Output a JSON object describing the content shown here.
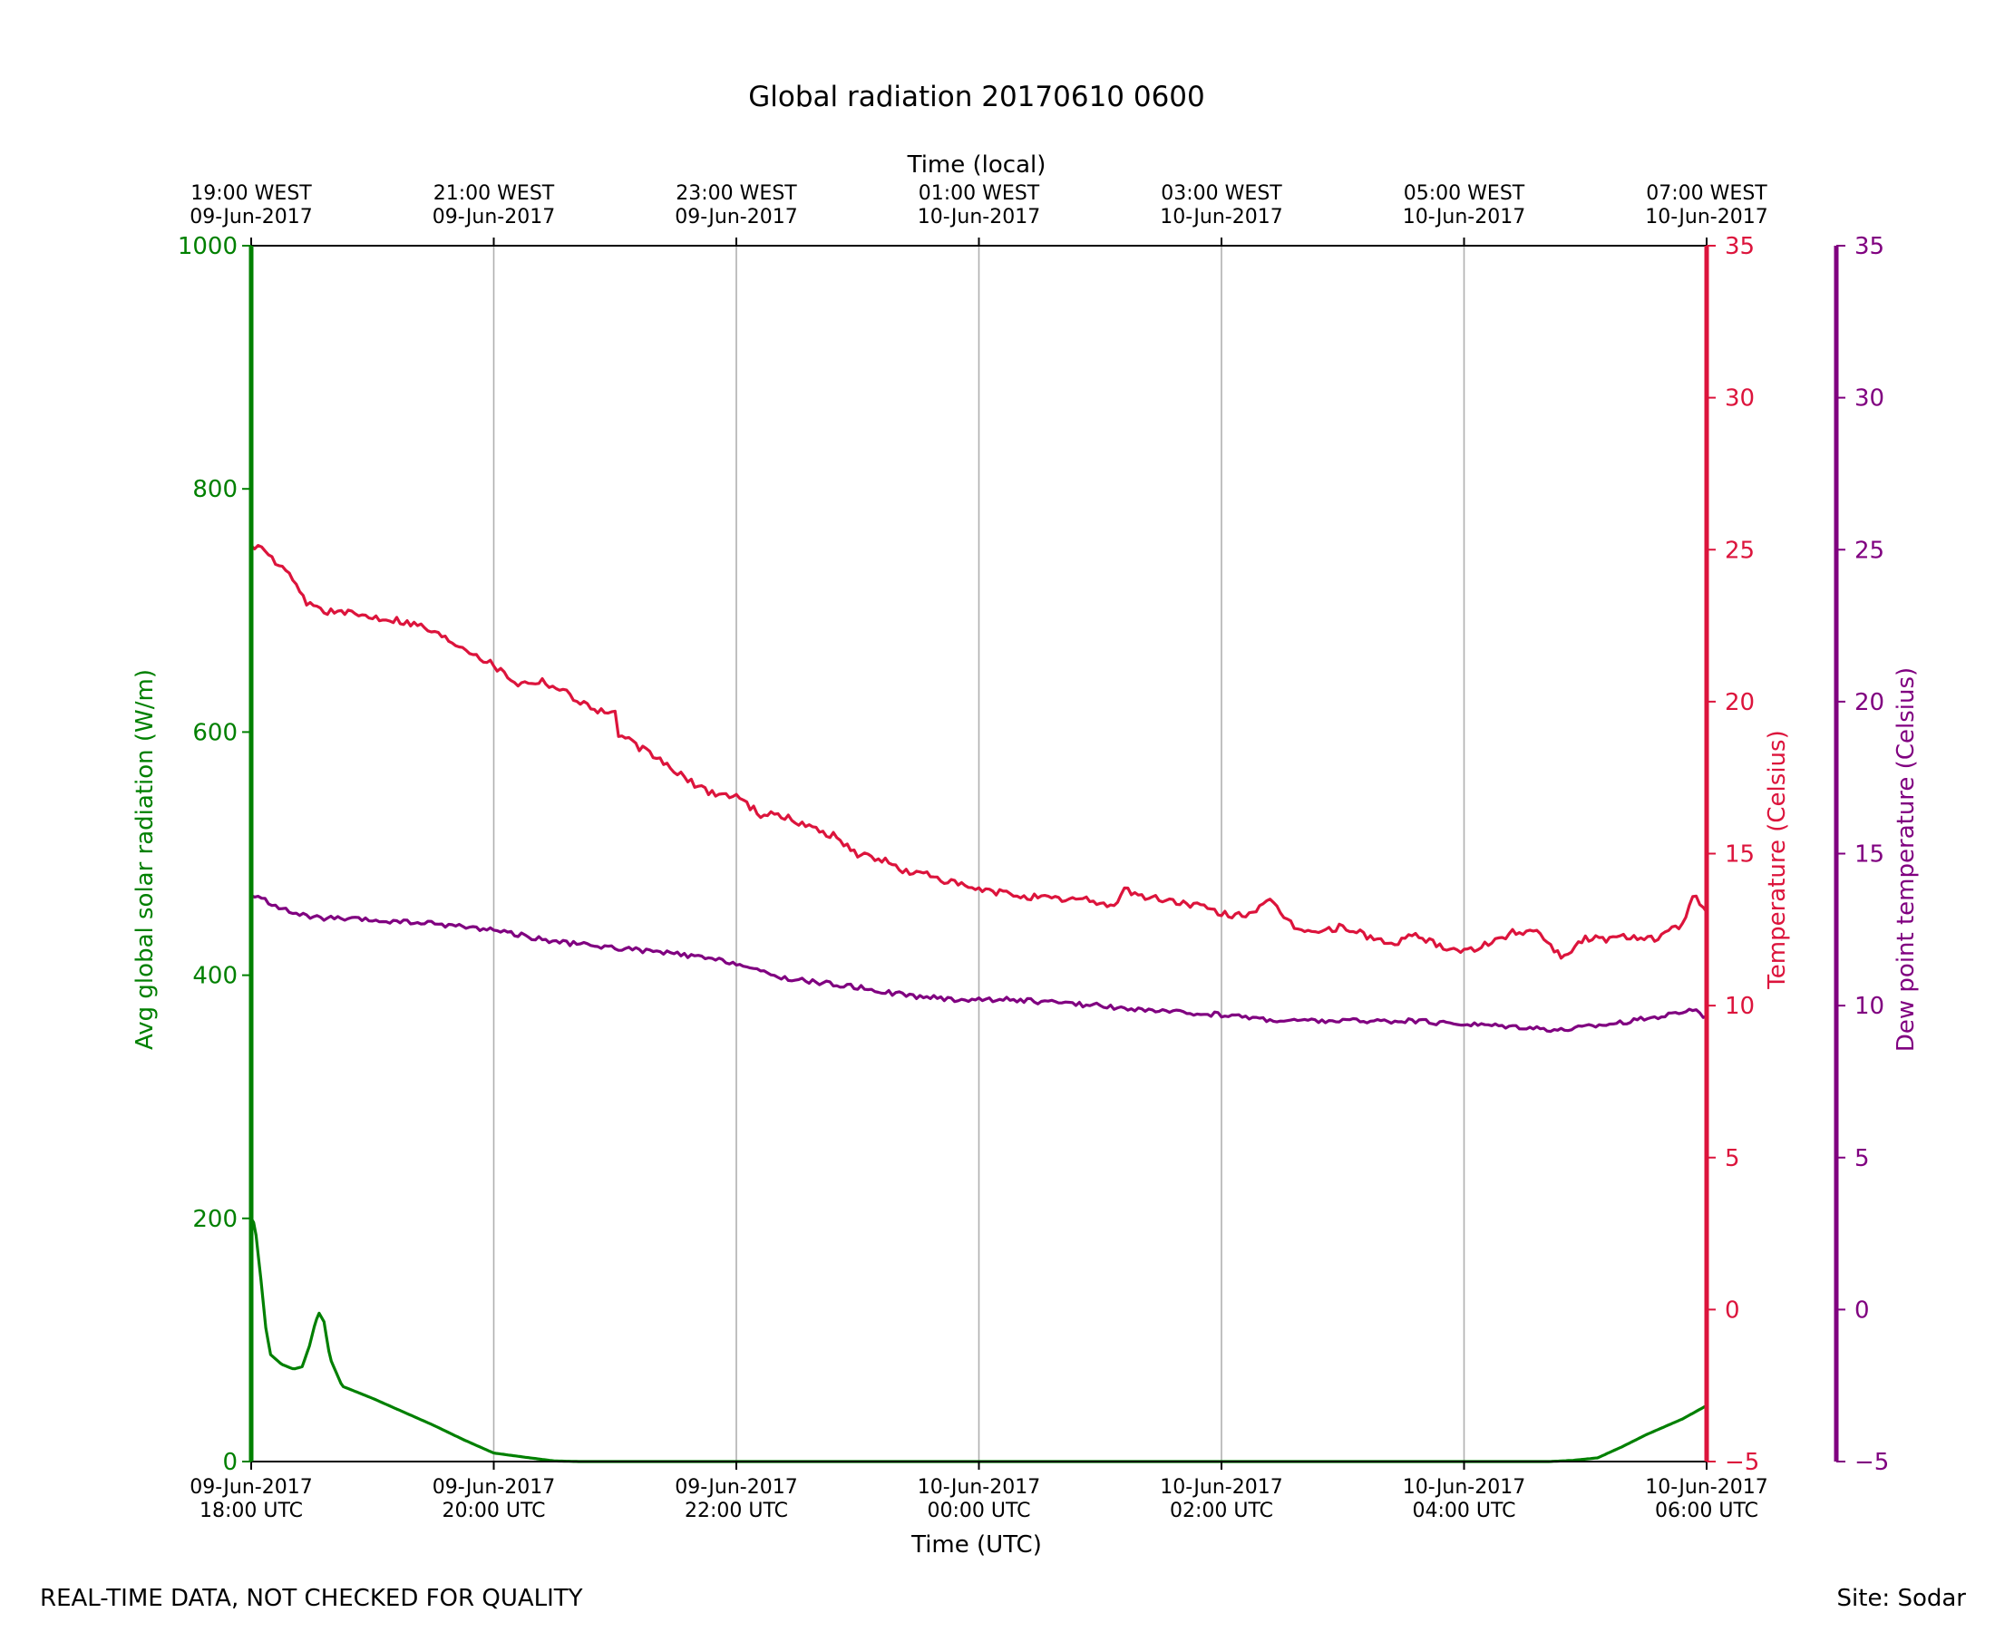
{
  "chart_data": {
    "type": "line",
    "title": "Global radiation 20170610 0600",
    "xlabel": "Time (UTC)",
    "x2label": "Time (local)",
    "footer_left": "REAL-TIME DATA, NOT CHECKED FOR QUALITY",
    "footer_right": "Site: Sodar",
    "grid": "vertical",
    "x_range_hours": [
      0,
      12
    ],
    "x_ticks_utc": [
      {
        "h": 0,
        "line1": "09-Jun-2017",
        "line2": "18:00 UTC"
      },
      {
        "h": 2,
        "line1": "09-Jun-2017",
        "line2": "20:00 UTC"
      },
      {
        "h": 4,
        "line1": "09-Jun-2017",
        "line2": "22:00 UTC"
      },
      {
        "h": 6,
        "line1": "10-Jun-2017",
        "line2": "00:00 UTC"
      },
      {
        "h": 8,
        "line1": "10-Jun-2017",
        "line2": "02:00 UTC"
      },
      {
        "h": 10,
        "line1": "10-Jun-2017",
        "line2": "04:00 UTC"
      },
      {
        "h": 12,
        "line1": "10-Jun-2017",
        "line2": "06:00 UTC"
      }
    ],
    "x_ticks_local": [
      {
        "h": 0,
        "line1": "19:00 WEST",
        "line2": "09-Jun-2017"
      },
      {
        "h": 2,
        "line1": "21:00 WEST",
        "line2": "09-Jun-2017"
      },
      {
        "h": 4,
        "line1": "23:00 WEST",
        "line2": "09-Jun-2017"
      },
      {
        "h": 6,
        "line1": "01:00 WEST",
        "line2": "10-Jun-2017"
      },
      {
        "h": 8,
        "line1": "03:00 WEST",
        "line2": "10-Jun-2017"
      },
      {
        "h": 10,
        "line1": "05:00 WEST",
        "line2": "10-Jun-2017"
      },
      {
        "h": 12,
        "line1": "07:00 WEST",
        "line2": "10-Jun-2017"
      }
    ],
    "axes": {
      "radiation": {
        "label": "Avg global solar radiation (W/m)",
        "color": "#008000",
        "ylim": [
          0,
          1000
        ],
        "ticks": [
          0,
          200,
          400,
          600,
          800,
          1000
        ]
      },
      "temperature": {
        "label": "Temperature (Celsius)",
        "color": "#dc143c",
        "ylim": [
          -5,
          35
        ],
        "ticks": [
          -5,
          0,
          5,
          10,
          15,
          20,
          25,
          30,
          35
        ]
      },
      "dewpoint": {
        "label": "Dew point temperature (Celsius)",
        "color": "#800080",
        "ylim": [
          -5,
          35
        ],
        "ticks": [
          -5,
          0,
          5,
          10,
          15,
          20,
          25,
          30,
          35
        ]
      }
    },
    "series": [
      {
        "key": "radiation",
        "axis": "radiation",
        "color": "#008000",
        "noise": 0,
        "points": [
          [
            0.0,
            200
          ],
          [
            0.03,
            195
          ],
          [
            0.08,
            150
          ],
          [
            0.12,
            110
          ],
          [
            0.16,
            88
          ],
          [
            0.25,
            80
          ],
          [
            0.35,
            76
          ],
          [
            0.42,
            78
          ],
          [
            0.48,
            95
          ],
          [
            0.53,
            115
          ],
          [
            0.56,
            122
          ],
          [
            0.6,
            115
          ],
          [
            0.65,
            85
          ],
          [
            0.75,
            62
          ],
          [
            1.0,
            52
          ],
          [
            1.5,
            30
          ],
          [
            1.75,
            18
          ],
          [
            2.0,
            7
          ],
          [
            2.3,
            3
          ],
          [
            2.5,
            0.5
          ],
          [
            2.7,
            0
          ],
          [
            10.7,
            0
          ],
          [
            10.9,
            1
          ],
          [
            11.1,
            3
          ],
          [
            11.3,
            12
          ],
          [
            11.5,
            22
          ],
          [
            11.8,
            35
          ],
          [
            12.0,
            46
          ]
        ]
      },
      {
        "key": "temperature",
        "axis": "temperature",
        "color": "#dc143c",
        "noise": 0.12,
        "points": [
          [
            0.0,
            25.2
          ],
          [
            0.15,
            24.8
          ],
          [
            0.3,
            24.2
          ],
          [
            0.45,
            23.3
          ],
          [
            0.6,
            23.0
          ],
          [
            0.8,
            22.9
          ],
          [
            1.0,
            22.8
          ],
          [
            1.2,
            22.7
          ],
          [
            1.4,
            22.5
          ],
          [
            1.6,
            22.1
          ],
          [
            1.8,
            21.7
          ],
          [
            2.0,
            21.2
          ],
          [
            2.2,
            20.6
          ],
          [
            2.4,
            20.7
          ],
          [
            2.6,
            20.3
          ],
          [
            2.8,
            19.8
          ],
          [
            3.0,
            19.6
          ],
          [
            3.0,
            19.0
          ],
          [
            3.2,
            18.5
          ],
          [
            3.4,
            18.0
          ],
          [
            3.6,
            17.4
          ],
          [
            3.8,
            17.0
          ],
          [
            4.0,
            16.9
          ],
          [
            4.2,
            16.3
          ],
          [
            4.4,
            16.2
          ],
          [
            4.6,
            15.9
          ],
          [
            4.8,
            15.6
          ],
          [
            5.0,
            15.0
          ],
          [
            5.2,
            14.8
          ],
          [
            5.4,
            14.4
          ],
          [
            5.6,
            14.3
          ],
          [
            5.8,
            14.0
          ],
          [
            6.0,
            13.8
          ],
          [
            6.2,
            13.7
          ],
          [
            6.4,
            13.6
          ],
          [
            6.6,
            13.5
          ],
          [
            6.8,
            13.5
          ],
          [
            7.0,
            13.4
          ],
          [
            7.1,
            13.2
          ],
          [
            7.2,
            13.9
          ],
          [
            7.3,
            13.6
          ],
          [
            7.5,
            13.5
          ],
          [
            7.8,
            13.3
          ],
          [
            8.0,
            13.0
          ],
          [
            8.2,
            13.0
          ],
          [
            8.4,
            13.4
          ],
          [
            8.6,
            12.6
          ],
          [
            8.8,
            12.4
          ],
          [
            9.0,
            12.6
          ],
          [
            9.2,
            12.3
          ],
          [
            9.4,
            12.0
          ],
          [
            9.6,
            12.3
          ],
          [
            9.8,
            12.0
          ],
          [
            10.0,
            11.8
          ],
          [
            10.2,
            12.0
          ],
          [
            10.4,
            12.4
          ],
          [
            10.6,
            12.5
          ],
          [
            10.8,
            11.6
          ],
          [
            11.0,
            12.2
          ],
          [
            11.2,
            12.2
          ],
          [
            11.4,
            12.3
          ],
          [
            11.6,
            12.2
          ],
          [
            11.8,
            12.7
          ],
          [
            11.9,
            13.6
          ],
          [
            12.0,
            13.0
          ]
        ]
      },
      {
        "key": "dewpoint",
        "axis": "dewpoint",
        "color": "#800080",
        "noise": 0.08,
        "points": [
          [
            0.0,
            13.6
          ],
          [
            0.1,
            13.5
          ],
          [
            0.3,
            13.1
          ],
          [
            0.5,
            12.9
          ],
          [
            1.0,
            12.8
          ],
          [
            1.5,
            12.7
          ],
          [
            2.0,
            12.5
          ],
          [
            2.5,
            12.1
          ],
          [
            3.0,
            11.9
          ],
          [
            3.5,
            11.7
          ],
          [
            4.0,
            11.4
          ],
          [
            4.2,
            11.1
          ],
          [
            4.4,
            10.9
          ],
          [
            4.6,
            10.8
          ],
          [
            4.8,
            10.7
          ],
          [
            5.0,
            10.6
          ],
          [
            5.3,
            10.4
          ],
          [
            5.5,
            10.3
          ],
          [
            5.8,
            10.2
          ],
          [
            6.0,
            10.2
          ],
          [
            6.3,
            10.2
          ],
          [
            6.6,
            10.1
          ],
          [
            7.0,
            10.0
          ],
          [
            7.5,
            9.8
          ],
          [
            8.0,
            9.7
          ],
          [
            8.5,
            9.5
          ],
          [
            9.0,
            9.5
          ],
          [
            9.5,
            9.5
          ],
          [
            10.0,
            9.4
          ],
          [
            10.5,
            9.3
          ],
          [
            10.8,
            9.2
          ],
          [
            11.0,
            9.3
          ],
          [
            11.4,
            9.5
          ],
          [
            11.7,
            9.7
          ],
          [
            11.9,
            9.9
          ],
          [
            12.0,
            9.6
          ]
        ]
      }
    ]
  }
}
